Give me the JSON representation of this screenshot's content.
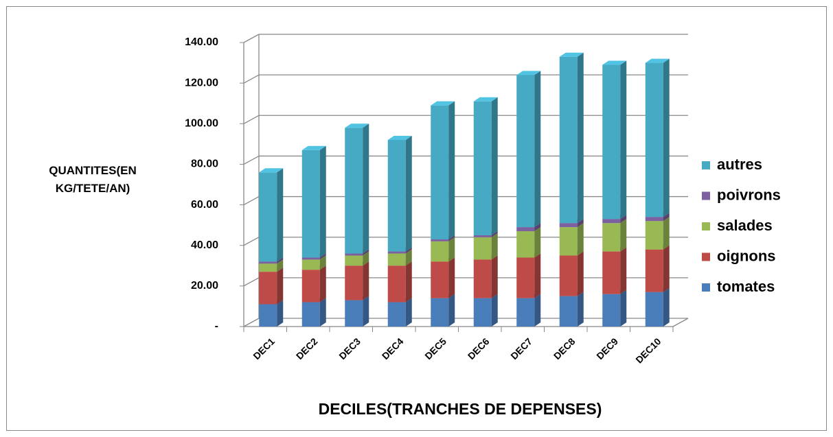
{
  "chart_data": {
    "type": "bar3d_stacked",
    "y_label": "QUANTITES(EN KG/TETE/AN)",
    "x_label": "DECILES(TRANCHES DE DEPENSES)",
    "categories": [
      "DEC1",
      "DEC2",
      "DEC3",
      "DEC4",
      "DEC5",
      "DEC6",
      "DEC7",
      "DEC8",
      "DEC9",
      "DEC10"
    ],
    "series": [
      {
        "name": "tomates",
        "color": "#4a7ebb",
        "values": [
          11,
          12,
          13,
          12,
          14,
          14,
          14,
          15,
          16,
          17
        ]
      },
      {
        "name": "oignons",
        "color": "#be4b48",
        "values": [
          16,
          16,
          17,
          18,
          18,
          19,
          20,
          20,
          21,
          21
        ]
      },
      {
        "name": "salades",
        "color": "#98b954",
        "values": [
          4,
          5,
          5,
          6,
          10,
          11,
          13,
          14,
          14,
          14
        ]
      },
      {
        "name": "poivrons",
        "color": "#7d60a0",
        "values": [
          1,
          1,
          1,
          1,
          1,
          1,
          2,
          2,
          2,
          2
        ]
      },
      {
        "name": "autres",
        "color": "#46aac5",
        "values": [
          44,
          53,
          62,
          55,
          66,
          66,
          75,
          82,
          76,
          76
        ]
      }
    ],
    "ylim": [
      0,
      140
    ],
    "yticks": [
      {
        "value": 0,
        "label": "-"
      },
      {
        "value": 20,
        "label": "20.00"
      },
      {
        "value": 40,
        "label": "40.00"
      },
      {
        "value": 60,
        "label": "60.00"
      },
      {
        "value": 80,
        "label": "80.00"
      },
      {
        "value": 100,
        "label": "100.00"
      },
      {
        "value": 120,
        "label": "120.00"
      },
      {
        "value": 140,
        "label": "140.00"
      }
    ],
    "grid": true,
    "legend": "right"
  }
}
